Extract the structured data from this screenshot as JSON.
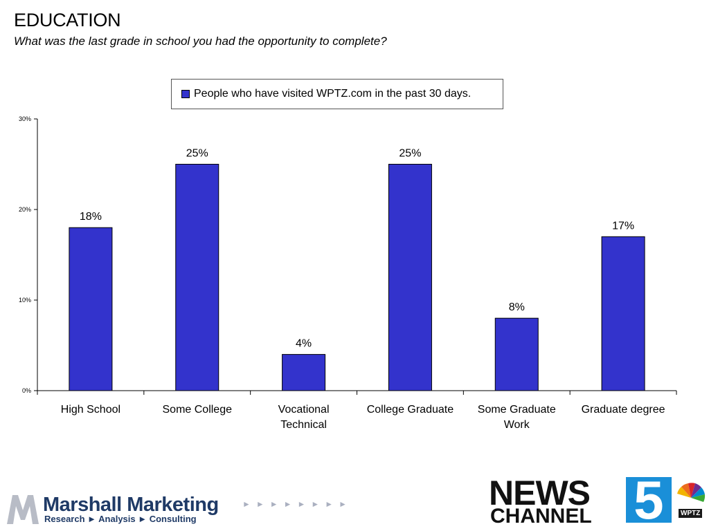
{
  "slide": {
    "title": "EDUCATION",
    "subtitle": "What was the last grade in school you had the opportunity to complete?"
  },
  "chart_data": {
    "type": "bar",
    "categories": [
      "High School",
      "Some College",
      "Vocational Technical",
      "College Graduate",
      "Some Graduate Work",
      "Graduate degree"
    ],
    "category_lines": [
      [
        "High School"
      ],
      [
        "Some College"
      ],
      [
        "Vocational",
        "Technical"
      ],
      [
        "College Graduate"
      ],
      [
        "Some Graduate",
        "Work"
      ],
      [
        "Graduate degree"
      ]
    ],
    "series": [
      {
        "name": "People who have visited WPTZ.com in the past 30 days.",
        "values": [
          18,
          25,
          4,
          25,
          8,
          17
        ],
        "labels": [
          "18%",
          "25%",
          "4%",
          "25%",
          "8%",
          "17%"
        ],
        "color": "#3333cc"
      }
    ],
    "ylim": [
      0,
      30
    ],
    "yticks": [
      0,
      10,
      20,
      30
    ],
    "ytick_labels": [
      "0%",
      "10%",
      "20%",
      "30%"
    ],
    "grid": false,
    "legend_position": "top-center"
  },
  "footer": {
    "left_logo": {
      "name": "Marshall Marketing",
      "tagline": "Research ► Analysis ► Consulting"
    },
    "right_logo": {
      "line1": "NEWS",
      "line2": "CHANNEL",
      "number": "5",
      "callsign": "WPTZ"
    }
  }
}
